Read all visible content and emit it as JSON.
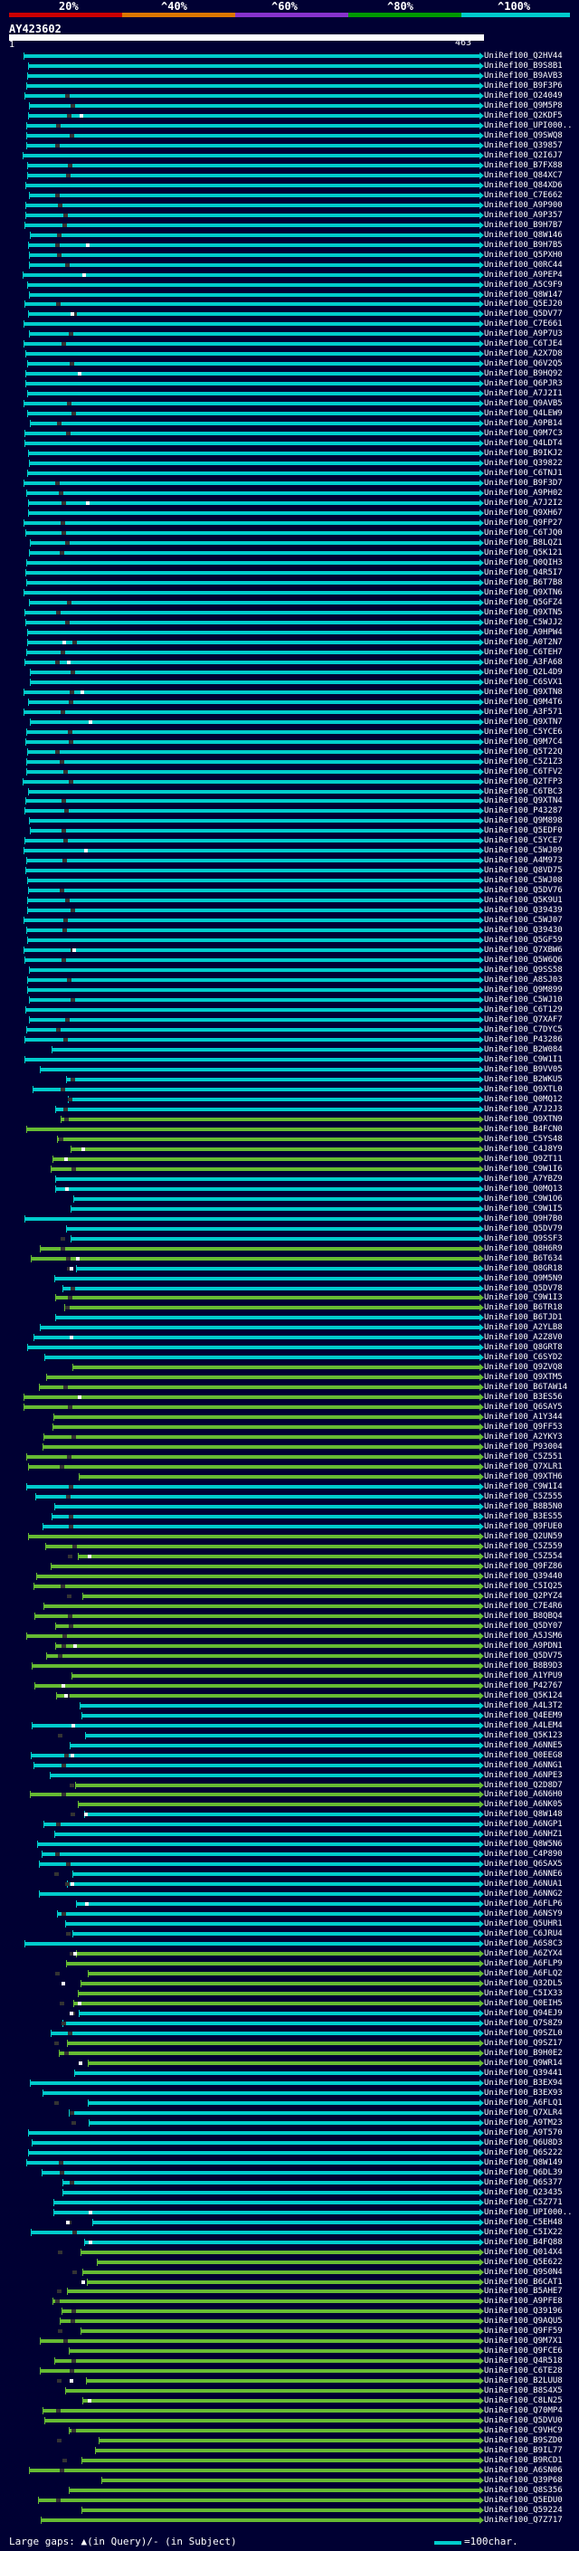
{
  "scale": {
    "labels": [
      "20%",
      "^40%",
      "^60%",
      "^80%",
      "^100%"
    ],
    "colors": [
      "#cc0000",
      "#dd7700",
      "#8833cc",
      "#009900",
      "#00cccc"
    ]
  },
  "query": {
    "title": "AY423602",
    "start": "1",
    "end": "463"
  },
  "colors": {
    "background": "#000033",
    "cyan": "#00cccc",
    "green": "#66bb33",
    "gap": "#333333"
  },
  "hits": [
    {
      "label": "UniRef100_Q2HV44",
      "color": "cyan"
    },
    {
      "label": "UniRef100_B9S8B1",
      "color": "cyan"
    },
    {
      "label": "UniRef100_B9AVB3",
      "color": "cyan"
    },
    {
      "label": "UniRef100_B9F3P6",
      "color": "cyan"
    },
    {
      "label": "UniRef100_O24049",
      "color": "cyan"
    },
    {
      "label": "UniRef100_Q9M5P8",
      "color": "cyan"
    },
    {
      "label": "UniRef100_Q2KDF5",
      "color": "cyan"
    },
    {
      "label": "UniRef100_UPI000..",
      "color": "cyan"
    },
    {
      "label": "UniRef100_Q9SWQ8",
      "color": "cyan"
    },
    {
      "label": "UniRef100_Q39857",
      "color": "cyan"
    },
    {
      "label": "UniRef100_Q2I6J7",
      "color": "cyan"
    },
    {
      "label": "UniRef100_B7FX88",
      "color": "cyan"
    },
    {
      "label": "UniRef100_Q84XC7",
      "color": "cyan"
    },
    {
      "label": "UniRef100_Q84XD6",
      "color": "cyan"
    },
    {
      "label": "UniRef100_C7E662",
      "color": "cyan"
    },
    {
      "label": "UniRef100_A9P900",
      "color": "cyan"
    },
    {
      "label": "UniRef100_A9P357",
      "color": "cyan"
    },
    {
      "label": "UniRef100_B9H7B7",
      "color": "cyan"
    },
    {
      "label": "UniRef100_Q8W146",
      "color": "cyan"
    },
    {
      "label": "UniRef100_B9H7B5",
      "color": "cyan"
    },
    {
      "label": "UniRef100_Q5PXH0",
      "color": "cyan"
    },
    {
      "label": "UniRef100_Q0RC44",
      "color": "cyan"
    },
    {
      "label": "UniRef100_A9PEP4",
      "color": "cyan"
    },
    {
      "label": "UniRef100_A5C9F9",
      "color": "cyan"
    },
    {
      "label": "UniRef100_Q8W147",
      "color": "cyan"
    },
    {
      "label": "UniRef100_Q5EJ20",
      "color": "cyan"
    },
    {
      "label": "UniRef100_Q5DV77",
      "color": "cyan"
    },
    {
      "label": "UniRef100_C7E661",
      "color": "cyan"
    },
    {
      "label": "UniRef100_A9P7U3",
      "color": "cyan"
    },
    {
      "label": "UniRef100_C6TJE4",
      "color": "cyan"
    },
    {
      "label": "UniRef100_A2X7D8",
      "color": "cyan"
    },
    {
      "label": "UniRef100_Q6V2Q5",
      "color": "cyan"
    },
    {
      "label": "UniRef100_B9HQ92",
      "color": "cyan"
    },
    {
      "label": "UniRef100_Q6PJR3",
      "color": "cyan"
    },
    {
      "label": "UniRef100_A7J2I1",
      "color": "cyan"
    },
    {
      "label": "UniRef100_Q9AVB5",
      "color": "cyan"
    },
    {
      "label": "UniRef100_Q4LEW9",
      "color": "cyan"
    },
    {
      "label": "UniRef100_A9PB14",
      "color": "cyan"
    },
    {
      "label": "UniRef100_Q9M7C3",
      "color": "cyan"
    },
    {
      "label": "UniRef100_Q4LDT4",
      "color": "cyan"
    },
    {
      "label": "UniRef100_B9IKJ2",
      "color": "cyan"
    },
    {
      "label": "UniRef100_Q39822",
      "color": "cyan"
    },
    {
      "label": "UniRef100_C6TNJ1",
      "color": "cyan"
    },
    {
      "label": "UniRef100_B9F3D7",
      "color": "cyan"
    },
    {
      "label": "UniRef100_A9PH02",
      "color": "cyan"
    },
    {
      "label": "UniRef100_A7J2I2",
      "color": "cyan"
    },
    {
      "label": "UniRef100_Q9XH67",
      "color": "cyan"
    },
    {
      "label": "UniRef100_Q9FP27",
      "color": "cyan"
    },
    {
      "label": "UniRef100_C6TJQ0",
      "color": "cyan"
    },
    {
      "label": "UniRef100_B8LQZ1",
      "color": "cyan"
    },
    {
      "label": "UniRef100_Q5K121",
      "color": "cyan"
    },
    {
      "label": "UniRef100_Q0QIH3",
      "color": "cyan"
    },
    {
      "label": "UniRef100_Q4R5I7",
      "color": "cyan"
    },
    {
      "label": "UniRef100_B6T7B8",
      "color": "cyan"
    },
    {
      "label": "UniRef100_Q9XTN6",
      "color": "cyan"
    },
    {
      "label": "UniRef100_Q5GFZ4",
      "color": "cyan"
    },
    {
      "label": "UniRef100_Q9XTN5",
      "color": "cyan"
    },
    {
      "label": "UniRef100_C5WJJ2",
      "color": "cyan"
    },
    {
      "label": "UniRef100_A9HPW4",
      "color": "cyan"
    },
    {
      "label": "UniRef100_A0T2N7",
      "color": "cyan"
    },
    {
      "label": "UniRef100_C6TEH7",
      "color": "cyan"
    },
    {
      "label": "UniRef100_A3FA68",
      "color": "cyan"
    },
    {
      "label": "UniRef100_Q2L4D9",
      "color": "cyan"
    },
    {
      "label": "UniRef100_C6SVX1",
      "color": "cyan"
    },
    {
      "label": "UniRef100_Q9XTN8",
      "color": "cyan"
    },
    {
      "label": "UniRef100_Q9M4T6",
      "color": "cyan"
    },
    {
      "label": "UniRef100_A3F571",
      "color": "cyan"
    },
    {
      "label": "UniRef100_Q9XTN7",
      "color": "cyan"
    },
    {
      "label": "UniRef100_C5YCE6",
      "color": "cyan"
    },
    {
      "label": "UniRef100_Q9M7C4",
      "color": "cyan"
    },
    {
      "label": "UniRef100_Q5T22Q",
      "color": "cyan"
    },
    {
      "label": "UniRef100_C5Z1Z3",
      "color": "cyan"
    },
    {
      "label": "UniRef100_C6TFV2",
      "color": "cyan"
    },
    {
      "label": "UniRef100_Q2TFP3",
      "color": "cyan"
    },
    {
      "label": "UniRef100_C6TBC3",
      "color": "cyan"
    },
    {
      "label": "UniRef100_Q9XTN4",
      "color": "cyan"
    },
    {
      "label": "UniRef100_P43287",
      "color": "cyan"
    },
    {
      "label": "UniRef100_Q9M898",
      "color": "cyan"
    },
    {
      "label": "UniRef100_Q5EDF0",
      "color": "cyan"
    },
    {
      "label": "UniRef100_C5YCE7",
      "color": "cyan"
    },
    {
      "label": "UniRef100_C5WJ09",
      "color": "cyan"
    },
    {
      "label": "UniRef100_A4M973",
      "color": "cyan"
    },
    {
      "label": "UniRef100_Q8VD75",
      "color": "cyan"
    },
    {
      "label": "UniRef100_C5WJ08",
      "color": "cyan"
    },
    {
      "label": "UniRef100_Q5DV76",
      "color": "cyan"
    },
    {
      "label": "UniRef100_Q5K9U1",
      "color": "cyan"
    },
    {
      "label": "UniRef100_Q39439",
      "color": "cyan"
    },
    {
      "label": "UniRef100_C5WJ07",
      "color": "cyan"
    },
    {
      "label": "UniRef100_Q39430",
      "color": "cyan"
    },
    {
      "label": "UniRef100_Q5GF59",
      "color": "cyan"
    },
    {
      "label": "UniRef100_Q7XBW6",
      "color": "cyan"
    },
    {
      "label": "UniRef100_Q5W6Q6",
      "color": "cyan"
    },
    {
      "label": "UniRef100_Q9SS58",
      "color": "cyan"
    },
    {
      "label": "UniRef100_A8SJ03",
      "color": "cyan"
    },
    {
      "label": "UniRef100_Q9M899",
      "color": "cyan"
    },
    {
      "label": "UniRef100_C5WJ10",
      "color": "cyan"
    },
    {
      "label": "UniRef100_C6T129",
      "color": "cyan"
    },
    {
      "label": "UniRef100_Q7XAF7",
      "color": "cyan"
    },
    {
      "label": "UniRef100_C7DYC5",
      "color": "cyan"
    },
    {
      "label": "UniRef100_P43286",
      "color": "cyan"
    },
    {
      "label": "UniRef100_B2W084",
      "color": "cyan"
    },
    {
      "label": "UniRef100_C9W1I1",
      "color": "cyan"
    },
    {
      "label": "UniRef100_B9VV05",
      "color": "cyan"
    },
    {
      "label": "UniRef100_B2WKU5",
      "color": "cyan"
    },
    {
      "label": "UniRef100_Q9XTL0",
      "color": "cyan"
    },
    {
      "label": "UniRef100_Q0MQ12",
      "color": "cyan"
    },
    {
      "label": "UniRef100_A7J2J3",
      "color": "cyan"
    },
    {
      "label": "UniRef100_Q9XTN9",
      "color": "green"
    },
    {
      "label": "UniRef100_B4FCN0",
      "color": "green"
    },
    {
      "label": "UniRef100_C5YS48",
      "color": "green"
    },
    {
      "label": "UniRef100_C4J8Y9",
      "color": "green"
    },
    {
      "label": "UniRef100_Q9ZT11",
      "color": "green"
    },
    {
      "label": "UniRef100_C9W1I6",
      "color": "green"
    },
    {
      "label": "UniRef100_A7YBZ9",
      "color": "cyan"
    },
    {
      "label": "UniRef100_Q0MQ13",
      "color": "cyan"
    },
    {
      "label": "UniRef100_C9W1O6",
      "color": "cyan"
    },
    {
      "label": "UniRef100_C9W1I5",
      "color": "cyan"
    },
    {
      "label": "UniRef100_Q9H7B0",
      "color": "cyan"
    },
    {
      "label": "UniRef100_Q5DV79",
      "color": "cyan"
    },
    {
      "label": "UniRef100_Q9SSF3",
      "color": "cyan"
    },
    {
      "label": "UniRef100_Q8H6R9",
      "color": "green"
    },
    {
      "label": "UniRef100_B6T634",
      "color": "green"
    },
    {
      "label": "UniRef100_Q8GR18",
      "color": "cyan"
    },
    {
      "label": "UniRef100_Q9M5N9",
      "color": "cyan"
    },
    {
      "label": "UniRef100_Q5DV78",
      "color": "cyan"
    },
    {
      "label": "UniRef100_C9W1I3",
      "color": "green"
    },
    {
      "label": "UniRef100_B6TR18",
      "color": "green"
    },
    {
      "label": "UniRef100_B6TJD1",
      "color": "cyan"
    },
    {
      "label": "UniRef100_A2YLB8",
      "color": "cyan"
    },
    {
      "label": "UniRef100_A2Z8V0",
      "color": "cyan"
    },
    {
      "label": "UniRef100_Q8GRT8",
      "color": "cyan"
    },
    {
      "label": "UniRef100_C6SYD2",
      "color": "cyan"
    },
    {
      "label": "UniRef100_Q9ZVQ8",
      "color": "green"
    },
    {
      "label": "UniRef100_Q9XTM5",
      "color": "green"
    },
    {
      "label": "UniRef100_B6TAW14",
      "color": "green"
    },
    {
      "label": "UniRef100_B3ES56",
      "color": "green"
    },
    {
      "label": "UniRef100_Q6SAY5",
      "color": "green"
    },
    {
      "label": "UniRef100_A1Y344",
      "color": "green"
    },
    {
      "label": "UniRef100_Q9FF53",
      "color": "green"
    },
    {
      "label": "UniRef100_A2YKY3",
      "color": "green"
    },
    {
      "label": "UniRef100_P93004",
      "color": "green"
    },
    {
      "label": "UniRef100_C5Z551",
      "color": "green"
    },
    {
      "label": "UniRef100_Q7XLR1",
      "color": "green"
    },
    {
      "label": "UniRef100_Q9XTH6",
      "color": "green"
    },
    {
      "label": "UniRef100_C9W1I4",
      "color": "cyan"
    },
    {
      "label": "UniRef100_C5Z555",
      "color": "cyan"
    },
    {
      "label": "UniRef100_B8B5N0",
      "color": "cyan"
    },
    {
      "label": "UniRef100_B3ES55",
      "color": "cyan"
    },
    {
      "label": "UniRef100_Q9FUE0",
      "color": "cyan"
    },
    {
      "label": "UniRef100_Q2UN59",
      "color": "green"
    },
    {
      "label": "UniRef100_C5Z559",
      "color": "green"
    },
    {
      "label": "UniRef100_C5Z554",
      "color": "green"
    },
    {
      "label": "UniRef100_Q9FZ86",
      "color": "green"
    },
    {
      "label": "UniRef100_Q39440",
      "color": "green"
    },
    {
      "label": "UniRef100_C5IQ25",
      "color": "green"
    },
    {
      "label": "UniRef100_Q2PYZ4",
      "color": "green"
    },
    {
      "label": "UniRef100_C7E4R6",
      "color": "green"
    },
    {
      "label": "UniRef100_B8QBQ4",
      "color": "green"
    },
    {
      "label": "UniRef100_Q5DY07",
      "color": "green"
    },
    {
      "label": "UniRef100_A5JSM6",
      "color": "green"
    },
    {
      "label": "UniRef100_A9PDN1",
      "color": "green"
    },
    {
      "label": "UniRef100_Q5DV75",
      "color": "green"
    },
    {
      "label": "UniRef100_B8B9D3",
      "color": "green"
    },
    {
      "label": "UniRef100_A1YPU9",
      "color": "green"
    },
    {
      "label": "UniRef100_P42767",
      "color": "green"
    },
    {
      "label": "UniRef100_Q5K124",
      "color": "green"
    },
    {
      "label": "UniRef100_A4L3T2",
      "color": "cyan"
    },
    {
      "label": "UniRef100_Q4EEM9",
      "color": "cyan"
    },
    {
      "label": "UniRef100_A4LEM4",
      "color": "cyan"
    },
    {
      "label": "UniRef100_Q5K123",
      "color": "cyan"
    },
    {
      "label": "UniRef100_A6NNE5",
      "color": "cyan"
    },
    {
      "label": "UniRef100_Q0EEG8",
      "color": "cyan"
    },
    {
      "label": "UniRef100_A6NNG1",
      "color": "cyan"
    },
    {
      "label": "UniRef100_A6NPE3",
      "color": "cyan"
    },
    {
      "label": "UniRef100_Q2D8D7",
      "color": "green"
    },
    {
      "label": "UniRef100_A6N6H0",
      "color": "green"
    },
    {
      "label": "UniRef100_A6NK05",
      "color": "green"
    },
    {
      "label": "UniRef100_Q8W148",
      "color": "cyan"
    },
    {
      "label": "UniRef100_A6NGP1",
      "color": "cyan"
    },
    {
      "label": "UniRef100_A6NHZ1",
      "color": "cyan"
    },
    {
      "label": "UniRef100_Q8W5N6",
      "color": "cyan"
    },
    {
      "label": "UniRef100_C4P890",
      "color": "cyan"
    },
    {
      "label": "UniRef100_Q6SAX5",
      "color": "cyan"
    },
    {
      "label": "UniRef100_A6NNE6",
      "color": "cyan"
    },
    {
      "label": "UniRef100_A6NUA1",
      "color": "cyan"
    },
    {
      "label": "UniRef100_A6NNG2",
      "color": "cyan"
    },
    {
      "label": "UniRef100_A6FLP6",
      "color": "cyan"
    },
    {
      "label": "UniRef100_A6NSY9",
      "color": "cyan"
    },
    {
      "label": "UniRef100_Q5UHR1",
      "color": "cyan"
    },
    {
      "label": "UniRef100_C6JRU4",
      "color": "cyan"
    },
    {
      "label": "UniRef100_A6S8C3",
      "color": "cyan"
    },
    {
      "label": "UniRef100_A6ZYX4",
      "color": "green"
    },
    {
      "label": "UniRef100_A6FLP9",
      "color": "green"
    },
    {
      "label": "UniRef100_A6FLQ2",
      "color": "green"
    },
    {
      "label": "UniRef100_Q32DL5",
      "color": "green"
    },
    {
      "label": "UniRef100_C5IX33",
      "color": "green"
    },
    {
      "label": "UniRef100_Q0EIH5",
      "color": "green"
    },
    {
      "label": "UniRef100_Q94EJ9",
      "color": "cyan"
    },
    {
      "label": "UniRef100_Q7S8Z9",
      "color": "cyan"
    },
    {
      "label": "UniRef100_Q9SZL0",
      "color": "cyan"
    },
    {
      "label": "UniRef100_Q9SZ17",
      "color": "green"
    },
    {
      "label": "UniRef100_B9H0E2",
      "color": "green"
    },
    {
      "label": "UniRef100_Q9WR14",
      "color": "green"
    },
    {
      "label": "UniRef100_Q39441",
      "color": "cyan"
    },
    {
      "label": "UniRef100_B3EX94",
      "color": "cyan"
    },
    {
      "label": "UniRef100_B3EX93",
      "color": "cyan"
    },
    {
      "label": "UniRef100_A6FLQ1",
      "color": "cyan"
    },
    {
      "label": "UniRef100_Q7XLR4",
      "color": "cyan"
    },
    {
      "label": "UniRef100_A9TM23",
      "color": "cyan"
    },
    {
      "label": "UniRef100_A9T570",
      "color": "cyan"
    },
    {
      "label": "UniRef100_Q6U8D3",
      "color": "cyan"
    },
    {
      "label": "UniRef100_Q6S222",
      "color": "cyan"
    },
    {
      "label": "UniRef100_Q8W149",
      "color": "cyan"
    },
    {
      "label": "UniRef100_Q6DL39",
      "color": "cyan"
    },
    {
      "label": "UniRef100_Q6S377",
      "color": "cyan"
    },
    {
      "label": "UniRef100_Q23435",
      "color": "cyan"
    },
    {
      "label": "UniRef100_C5Z771",
      "color": "cyan"
    },
    {
      "label": "UniRef100_UPI000..",
      "color": "cyan"
    },
    {
      "label": "UniRef100_C5EH48",
      "color": "cyan"
    },
    {
      "label": "UniRef100_C5IX22",
      "color": "cyan"
    },
    {
      "label": "UniRef100_B4FQ88",
      "color": "cyan"
    },
    {
      "label": "UniRef100_Q014X4",
      "color": "green"
    },
    {
      "label": "UniRef100_Q5E622",
      "color": "green"
    },
    {
      "label": "UniRef100_Q9S0N4",
      "color": "green"
    },
    {
      "label": "UniRef100_B6CAT1",
      "color": "green"
    },
    {
      "label": "UniRef100_B5AHE7",
      "color": "green"
    },
    {
      "label": "UniRef100_A9PFE8",
      "color": "green"
    },
    {
      "label": "UniRef100_Q39196",
      "color": "green"
    },
    {
      "label": "UniRef100_Q9AQU5",
      "color": "green"
    },
    {
      "label": "UniRef100_Q9FF59",
      "color": "green"
    },
    {
      "label": "UniRef100_Q9M7X1",
      "color": "green"
    },
    {
      "label": "UniRef100_Q9FCE6",
      "color": "green"
    },
    {
      "label": "UniRef100_Q4R518",
      "color": "green"
    },
    {
      "label": "UniRef100_C6TE28",
      "color": "green"
    },
    {
      "label": "UniRef100_B2LUU8",
      "color": "green"
    },
    {
      "label": "UniRef100_B8S4X5",
      "color": "green"
    },
    {
      "label": "UniRef100_C8LN25",
      "color": "green"
    },
    {
      "label": "UniRef100_Q70MP4",
      "color": "green"
    },
    {
      "label": "UniRef100_Q5DVU0",
      "color": "green"
    },
    {
      "label": "UniRef100_C9VHC9",
      "color": "green"
    },
    {
      "label": "UniRef100_B9SZD0",
      "color": "green"
    },
    {
      "label": "UniRef100_B9IL77",
      "color": "green"
    },
    {
      "label": "UniRef100_B9RCD1",
      "color": "green"
    },
    {
      "label": "UniRef100_A6SN06",
      "color": "green"
    },
    {
      "label": "UniRef100_Q39P68",
      "color": "green"
    },
    {
      "label": "UniRef100_Q8S356",
      "color": "green"
    },
    {
      "label": "UniRef100_Q5EDU0",
      "color": "green"
    },
    {
      "label": "UniRef100_Q59224",
      "color": "green"
    },
    {
      "label": "UniRef100_Q7Z717",
      "color": "green"
    }
  ],
  "legend": {
    "text": "Large gaps: ▲(in Query)/- (in Subject)",
    "scale_text": "=100char."
  }
}
